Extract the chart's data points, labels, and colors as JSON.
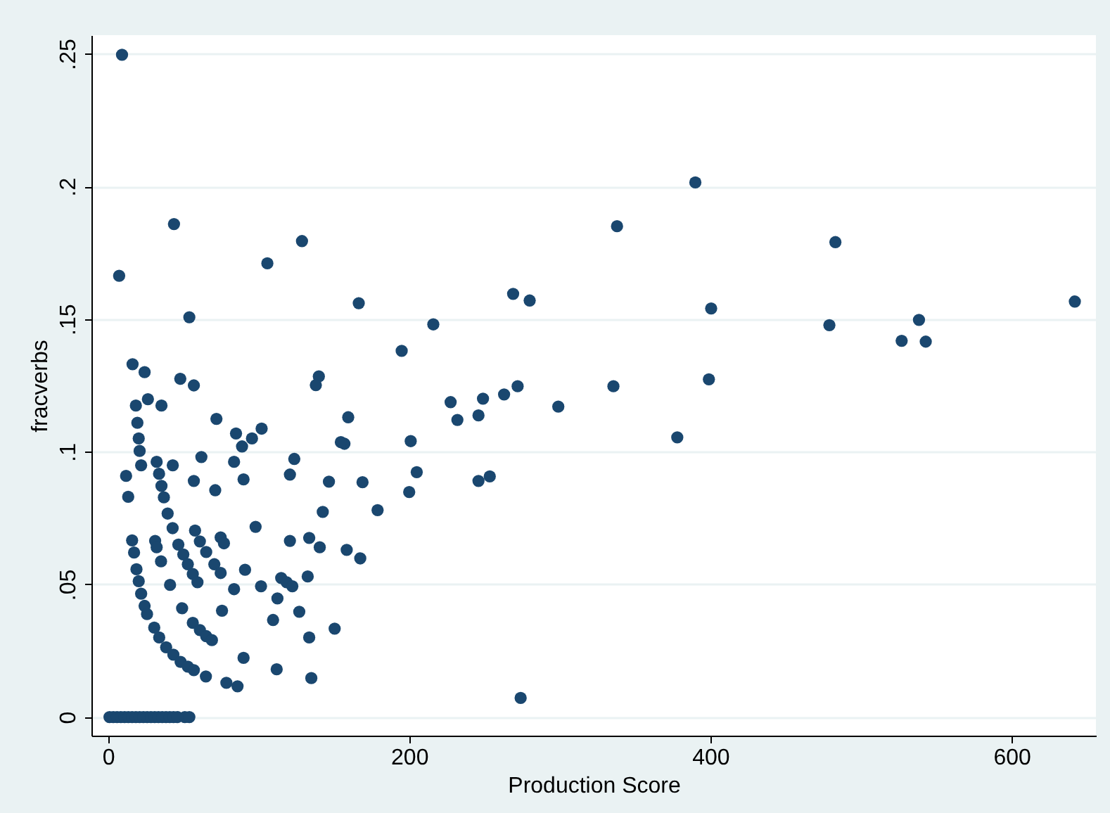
{
  "chart_data": {
    "type": "scatter",
    "xlabel": "Production Score",
    "ylabel": "fracverbs",
    "x": [
      9.3,
      7.4,
      43.8,
      105.8,
      128.8,
      54,
      166.5,
      269,
      280,
      400.5,
      216,
      195,
      338,
      390,
      483,
      642,
      479,
      538.5,
      527,
      543,
      227.5,
      249,
      263,
      272,
      335.6,
      399,
      299,
      232,
      246,
      159.5,
      157,
      201,
      378,
      205,
      169,
      200,
      246,
      253.5,
      179,
      158.5,
      167.5,
      274,
      16.3,
      24.3,
      48,
      57,
      140,
      138,
      18.5,
      26.5,
      35.5,
      19.5,
      20.4,
      21,
      22,
      72,
      85,
      89,
      95.6,
      102,
      154.6,
      123.7,
      120.8,
      146.7,
      62,
      83.7,
      90,
      43,
      57,
      71.2,
      12,
      13.4,
      32.3,
      33.9,
      35.5,
      37.1,
      39.6,
      42.9,
      142.6,
      98,
      120.8,
      133.6,
      140.6,
      57.8,
      61,
      65.2,
      74.8,
      77,
      16,
      17.3,
      31.3,
      32.3,
      35.2,
      46.7,
      50,
      53,
      56.3,
      59.4,
      70.6,
      74.8,
      91,
      83.7,
      101.6,
      115,
      118.6,
      122.4,
      132.6,
      112.5,
      127,
      109.6,
      133.6,
      150.5,
      75.7,
      49.2,
      41.2,
      18.9,
      20.4,
      22,
      24.3,
      25.9,
      30.7,
      34,
      38.6,
      43.4,
      48.2,
      53,
      57,
      56.3,
      61,
      65.2,
      69,
      65,
      78.6,
      86,
      90,
      112,
      135,
      1,
      3.5,
      6,
      8.5,
      11,
      13.5,
      16,
      18.5,
      21,
      23.5,
      26,
      28.5,
      31,
      33.5,
      36,
      38.5,
      41,
      43.5,
      46,
      51,
      54
    ],
    "values": [
      0.2496,
      0.1663,
      0.1858,
      0.171,
      0.1794,
      0.1507,
      0.156,
      0.1595,
      0.157,
      0.154,
      0.148,
      0.138,
      0.185,
      0.2015,
      0.179,
      0.1566,
      0.1477,
      0.1497,
      0.1418,
      0.1415,
      0.1187,
      0.12,
      0.1216,
      0.1247,
      0.1247,
      0.1273,
      0.117,
      0.112,
      0.1137,
      0.113,
      0.103,
      0.104,
      0.1054,
      0.0923,
      0.0885,
      0.0848,
      0.089,
      0.0907,
      0.078,
      0.063,
      0.0598,
      0.0072,
      0.133,
      0.13,
      0.1275,
      0.125,
      0.1284,
      0.1251,
      0.1174,
      0.1198,
      0.1174,
      0.1109,
      0.105,
      0.1003,
      0.0949,
      0.1124,
      0.1069,
      0.102,
      0.105,
      0.1087,
      0.1036,
      0.0973,
      0.0914,
      0.0887,
      0.098,
      0.0962,
      0.0896,
      0.0949,
      0.089,
      0.0855,
      0.0909,
      0.083,
      0.0962,
      0.0917,
      0.0871,
      0.0828,
      0.0767,
      0.0712,
      0.0773,
      0.0717,
      0.0664,
      0.0675,
      0.064,
      0.0703,
      0.0662,
      0.0622,
      0.0677,
      0.0655,
      0.0666,
      0.062,
      0.0664,
      0.064,
      0.0587,
      0.065,
      0.0613,
      0.0576,
      0.0539,
      0.0508,
      0.0576,
      0.0543,
      0.0555,
      0.0482,
      0.0493,
      0.0524,
      0.0508,
      0.0493,
      0.053,
      0.0447,
      0.0397,
      0.0366,
      0.03,
      0.0333,
      0.0401,
      0.041,
      0.0498,
      0.0557,
      0.0512,
      0.0465,
      0.0419,
      0.0388,
      0.0337,
      0.03,
      0.0263,
      0.0235,
      0.0208,
      0.019,
      0.0177,
      0.0355,
      0.0328,
      0.0305,
      0.029,
      0.0153,
      0.0129,
      0.0116,
      0.0223,
      0.018,
      0.0147,
      0,
      0,
      0,
      0,
      0,
      0,
      0,
      0,
      0,
      0,
      0,
      0,
      0,
      0,
      0,
      0,
      0,
      0,
      0,
      0,
      0
    ],
    "color": "#1a476f",
    "marker": "circle",
    "xlim": [
      -11,
      656
    ],
    "ylim": [
      -0.007,
      0.257
    ],
    "xticks": [
      0,
      200,
      400,
      600
    ],
    "yticks": [
      {
        "value": 0,
        "label": "0"
      },
      {
        "value": 0.05,
        "label": ".05"
      },
      {
        "value": 0.1,
        "label": ".1"
      },
      {
        "value": 0.15,
        "label": ".15"
      },
      {
        "value": 0.2,
        "label": ".2"
      },
      {
        "value": 0.25,
        "label": ".25"
      }
    ],
    "grid": "y"
  }
}
